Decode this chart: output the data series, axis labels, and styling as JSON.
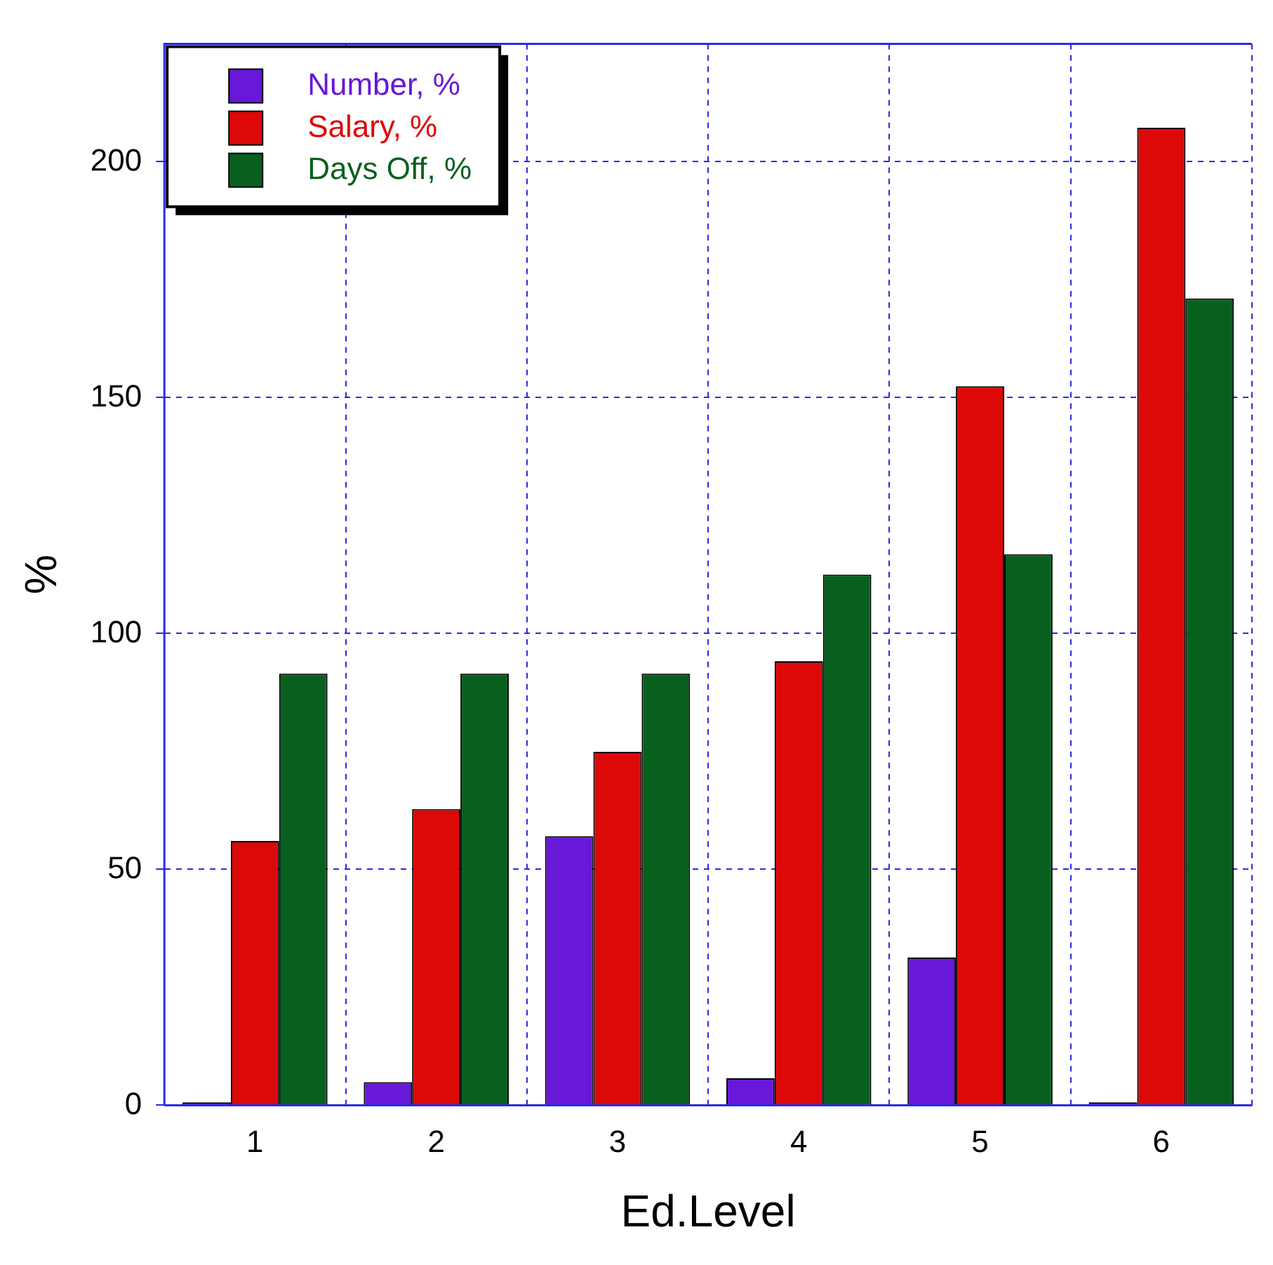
{
  "chart_data": {
    "type": "bar",
    "xlabel": "Ed.Level",
    "ylabel": "%",
    "categories": [
      "1",
      "2",
      "3",
      "4",
      "5",
      "6"
    ],
    "series": [
      {
        "name": "Number, %",
        "color": "#6718d8",
        "values": [
          0.6,
          4.9,
          57,
          5.7,
          31.3,
          0.6
        ]
      },
      {
        "name": "Salary, %",
        "color": "#dd0808",
        "values": [
          56,
          62.8,
          74.9,
          94.1,
          152.4,
          207.2
        ]
      },
      {
        "name": "Days Off, %",
        "color": "#08601e",
        "values": [
          91.5,
          91.5,
          91.5,
          112.5,
          116.8,
          171
        ]
      }
    ],
    "ylim": [
      0,
      225
    ],
    "yticks": [
      0,
      50,
      100,
      150,
      200
    ],
    "grid": true,
    "legend": "top left"
  }
}
